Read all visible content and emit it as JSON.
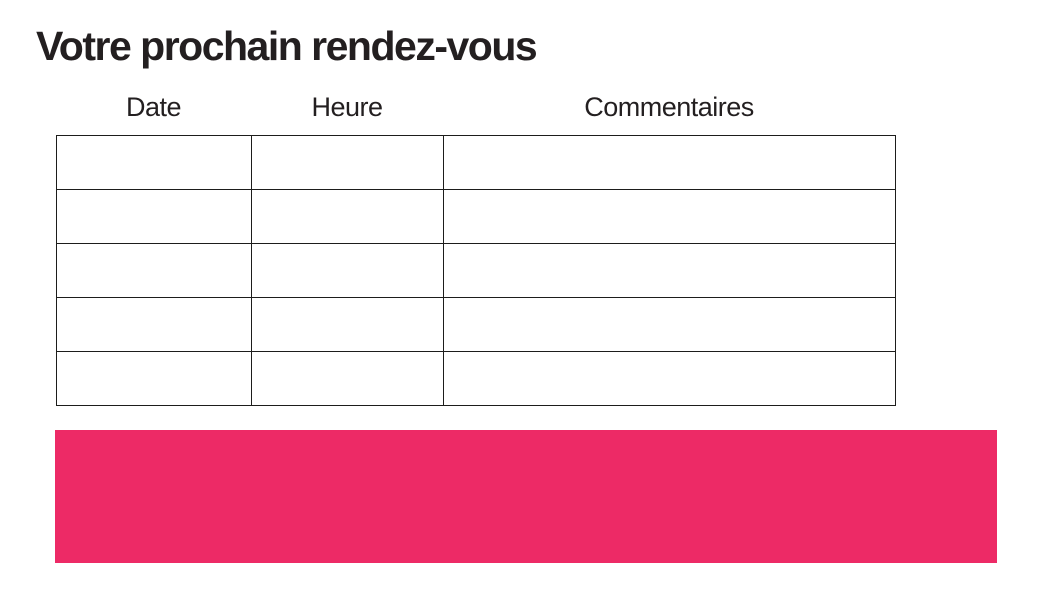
{
  "page": {
    "title": "Votre prochain rendez-vous"
  },
  "appointments_table": {
    "headers": [
      "Date",
      "Heure",
      "Commentaires"
    ],
    "rows": [
      {
        "date": "",
        "heure": "",
        "commentaires": ""
      },
      {
        "date": "",
        "heure": "",
        "commentaires": ""
      },
      {
        "date": "",
        "heure": "",
        "commentaires": ""
      },
      {
        "date": "",
        "heure": "",
        "commentaires": ""
      },
      {
        "date": "",
        "heure": "",
        "commentaires": ""
      }
    ]
  },
  "footer": {
    "accent_bar_color": "#ED2A66"
  },
  "colors": {
    "text": "#231F20",
    "table_border": "#1D1D1B",
    "background": "#FFFFFF"
  }
}
